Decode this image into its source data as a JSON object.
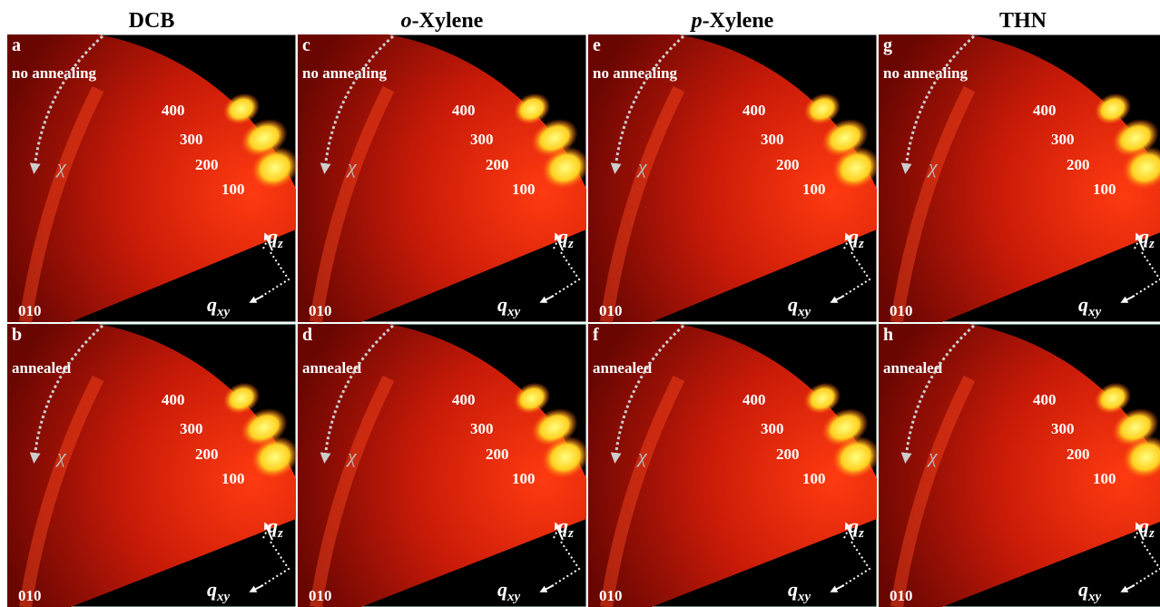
{
  "columns": [
    {
      "label": "DCB"
    },
    {
      "prefix": "o",
      "label": "-Xylene"
    },
    {
      "prefix": "p",
      "label": "-Xylene"
    },
    {
      "label": "THN"
    }
  ],
  "rows": [
    {
      "condition": "no annealing",
      "panels": [
        "a",
        "c",
        "e",
        "g"
      ]
    },
    {
      "condition": "annealed",
      "panels": [
        "b",
        "d",
        "f",
        "h"
      ]
    }
  ],
  "peaks": [
    "400",
    "300",
    "200",
    "100"
  ],
  "pi_peak": "010",
  "chi": "χ",
  "q": "q",
  "qz_sub": "z",
  "qxy_sub": "xy"
}
